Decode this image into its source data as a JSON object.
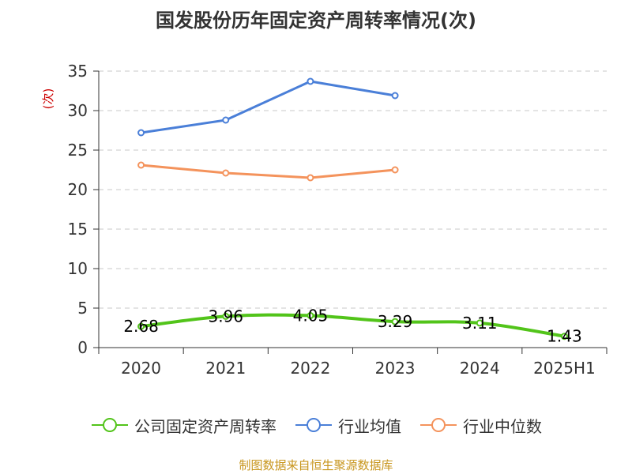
{
  "title": "国发股份历年固定资产周转率情况(次)",
  "footer": "制图数据来自恒生聚源数据库",
  "chart_data": {
    "type": "line",
    "title": "国发股份历年固定资产周转率情况(次)",
    "ylabel": "(次)",
    "xlabel": "",
    "categories": [
      "2020",
      "2021",
      "2022",
      "2023",
      "2024",
      "2025H1"
    ],
    "ylim": [
      0,
      35
    ],
    "yticks": [
      0,
      5,
      10,
      15,
      20,
      25,
      30,
      35
    ],
    "grid": true,
    "legend_position": "bottom",
    "series": [
      {
        "name": "公司固定资产周转率",
        "color": "#52c41a",
        "smooth": true,
        "show_labels": true,
        "values": [
          2.68,
          3.96,
          4.05,
          3.29,
          3.11,
          1.43
        ]
      },
      {
        "name": "行业均值",
        "color": "#4a7fd8",
        "smooth": false,
        "show_labels": false,
        "values": [
          27.2,
          28.8,
          33.7,
          31.9,
          null,
          null
        ]
      },
      {
        "name": "行业中位数",
        "color": "#f4935c",
        "smooth": false,
        "show_labels": false,
        "values": [
          23.1,
          22.1,
          21.5,
          22.5,
          null,
          null
        ]
      }
    ]
  }
}
